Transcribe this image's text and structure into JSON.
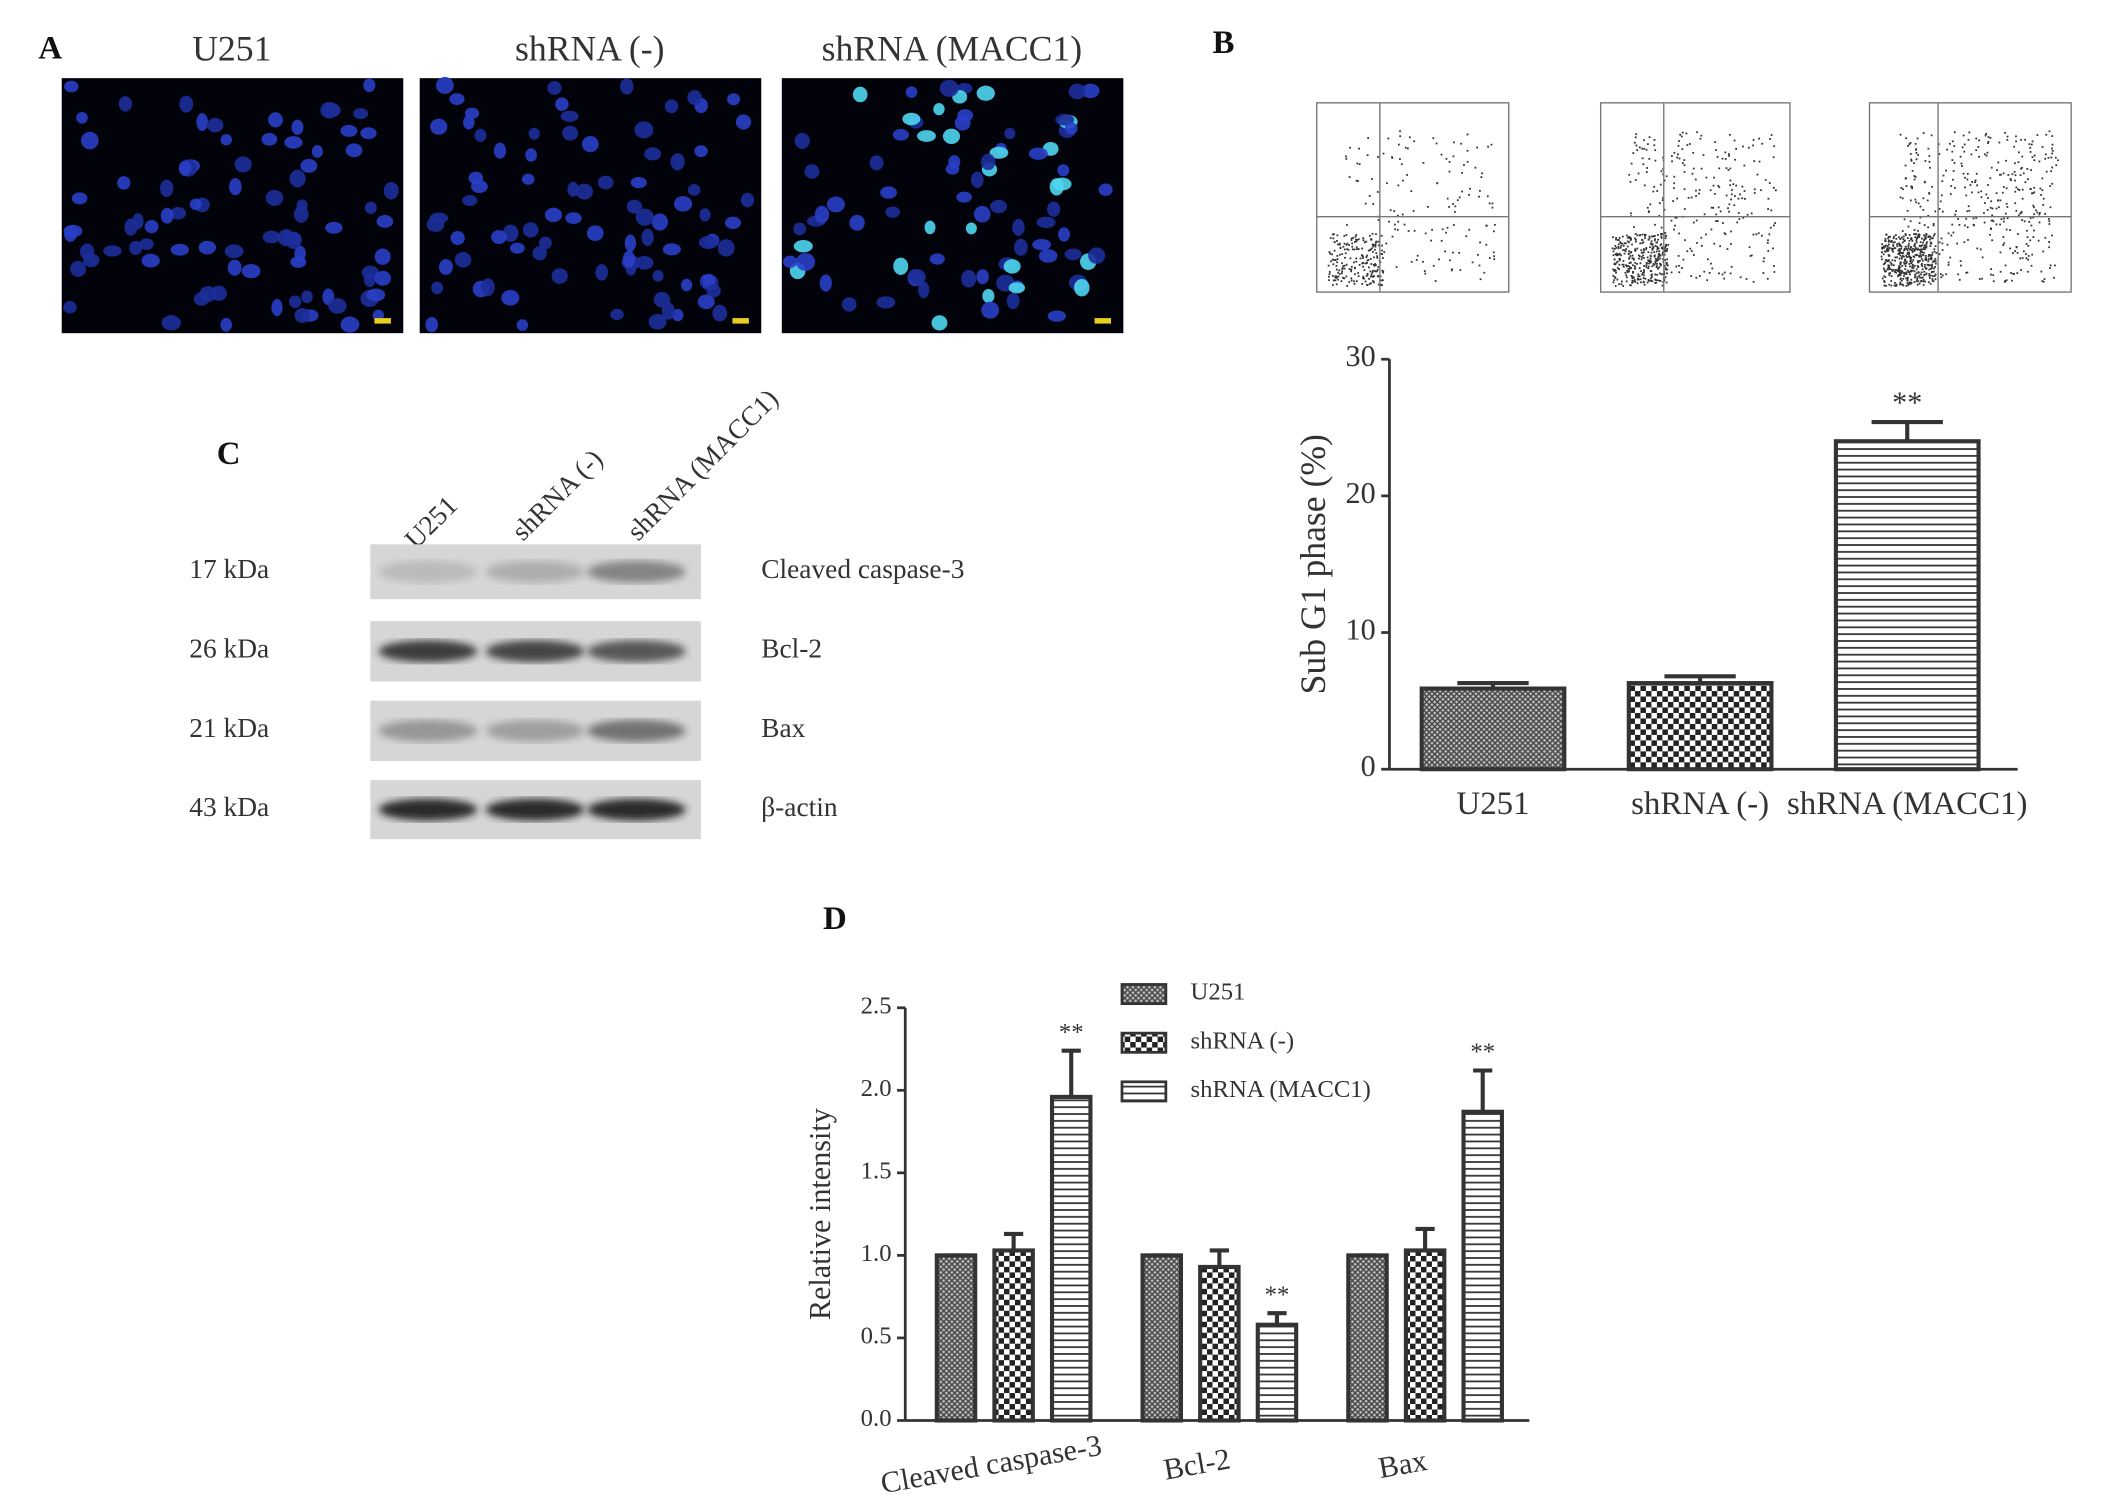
{
  "panel_labels": [
    "A",
    "B",
    "C",
    "D"
  ],
  "panel_a": {
    "titles": [
      "U251",
      "shRNA (-)",
      "shRNA (MACC1)"
    ]
  },
  "panel_c": {
    "lanes": [
      "U251",
      "shRNA (-)",
      "shRNA (MACC1)"
    ],
    "rows": [
      {
        "size": "17 kDa",
        "protein": "Cleaved caspase-3"
      },
      {
        "size": "26 kDa",
        "protein": "Bcl-2"
      },
      {
        "size": "21 kDa",
        "protein": "Bax"
      },
      {
        "size": "43 kDa",
        "protein": "β-actin"
      }
    ]
  },
  "chart_data": [
    {
      "type": "bar",
      "y_label": "Sub G1 phase (%)",
      "categories": [
        "U251",
        "shRNA (-)",
        "shRNA (MACC1)"
      ],
      "values": [
        5.9,
        6.3,
        24.0
      ],
      "errors": [
        0.4,
        0.5,
        1.4
      ],
      "significance": [
        null,
        null,
        "**"
      ],
      "patterns": [
        "crosshatch",
        "checker",
        "hlines"
      ],
      "ylim": [
        0,
        30
      ],
      "yticks": [
        0,
        10,
        20,
        30
      ]
    },
    {
      "type": "grouped_bar",
      "y_label": "Relative intensity",
      "categories": [
        "Cleaved caspase-3",
        "Bcl-2",
        "Bax"
      ],
      "series": [
        {
          "name": "U251",
          "pattern": "crosshatch",
          "values": [
            1,
            1,
            1
          ],
          "errors": [
            0,
            0,
            0
          ],
          "significance": [
            null,
            null,
            null
          ]
        },
        {
          "name": "shRNA (-)",
          "pattern": "checker",
          "values": [
            1.03,
            0.93,
            1.03
          ],
          "errors": [
            0.1,
            0.1,
            0.13
          ],
          "significance": [
            null,
            null,
            null
          ]
        },
        {
          "name": "shRNA (MACC1)",
          "pattern": "hlines",
          "values": [
            1.96,
            0.58,
            1.87
          ],
          "errors": [
            0.28,
            0.07,
            0.25
          ],
          "significance": [
            "**",
            "**",
            "**"
          ]
        }
      ],
      "ylim": [
        0,
        2.5
      ],
      "yticks": [
        {
          "value": 0,
          "label": "0.0"
        },
        0.5,
        {
          "value": 1,
          "label": "1.0"
        },
        1.5,
        {
          "value": 2,
          "label": "2.0"
        },
        2.5
      ]
    }
  ]
}
